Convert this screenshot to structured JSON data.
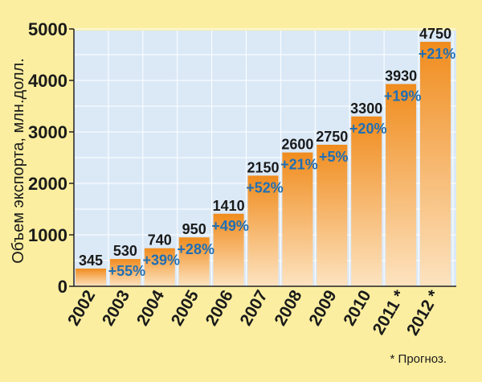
{
  "chart_data": {
    "type": "bar",
    "ylabel": "Объем экспорта, млн.долл.",
    "categories": [
      "2002",
      "2003",
      "2004",
      "2005",
      "2006",
      "2007",
      "2008",
      "2009",
      "2010",
      "2011 *",
      "2012 *"
    ],
    "values": [
      345,
      530,
      740,
      950,
      1410,
      2150,
      2600,
      2750,
      3300,
      3930,
      4750
    ],
    "value_labels": [
      "345",
      "530",
      "740",
      "950",
      "1410",
      "2150",
      "2600",
      "2750",
      "3300",
      "3930",
      "4750"
    ],
    "growth_labels": [
      "",
      "+55%",
      "+39%",
      "+28%",
      "+49%",
      "+52%",
      "+21%",
      "+5%",
      "+20%",
      "+19%",
      "+21%"
    ],
    "yticks": [
      0,
      1000,
      2000,
      3000,
      4000,
      5000
    ],
    "ylim": [
      0,
      5000
    ],
    "grid": true,
    "legend": "none",
    "footnote": "* Прогноз.",
    "colors": {
      "background": "#fbeea0",
      "plot_background": "#dbe9f7",
      "bar_top": "#f08c1e",
      "bar_bottom": "#fde3c0",
      "value_label": "#1a1a1a",
      "growth_label": "#1f6fb5"
    }
  }
}
